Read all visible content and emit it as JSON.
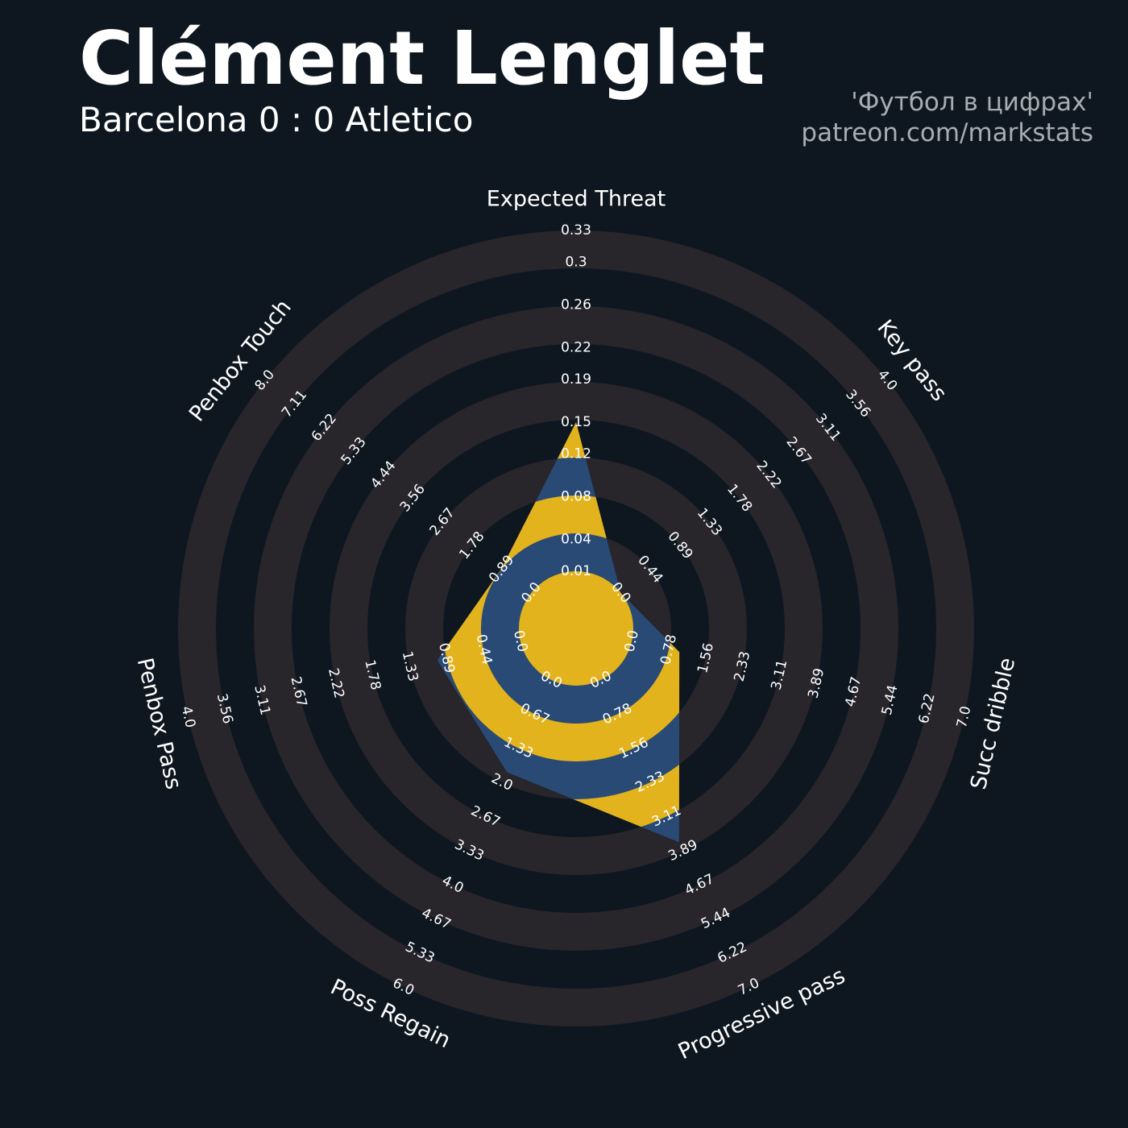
{
  "chart_data": {
    "type": "radar",
    "title": "Clément Lenglet",
    "subtitle": "Barcelona 0 : 0 Atletico",
    "annotations": [
      "'Футбол в цифрах'",
      "patreon.com/markstats"
    ],
    "colors": {
      "background": "#0e1720",
      "rings": "#28252b",
      "radar": "#284a74",
      "radar_rings": "#e2b31d"
    },
    "axes": [
      {
        "label": "Expected Threat",
        "lim": [
          0.01,
          0.33
        ],
        "ticks": [
          0.01,
          0.04,
          0.08,
          0.12,
          0.15,
          0.19,
          0.22,
          0.26,
          0.3,
          0.33
        ]
      },
      {
        "label": "Key pass",
        "lim": [
          0,
          4
        ],
        "ticks": [
          {
            "value": 0,
            "label": "0.0"
          },
          0.44,
          0.89,
          1.33,
          1.78,
          2.22,
          2.67,
          3.11,
          3.56,
          {
            "value": 4,
            "label": "4.0"
          }
        ]
      },
      {
        "label": "Succ dribble",
        "lim": [
          0,
          7
        ],
        "ticks": [
          {
            "value": 0,
            "label": "0.0"
          },
          0.78,
          1.56,
          2.33,
          3.11,
          3.89,
          4.67,
          5.44,
          6.22,
          {
            "value": 7,
            "label": "7.0"
          }
        ]
      },
      {
        "label": "Progressive pass",
        "lim": [
          0,
          7
        ],
        "ticks": [
          {
            "value": 0,
            "label": "0.0"
          },
          0.78,
          1.56,
          2.33,
          3.11,
          3.89,
          4.67,
          5.44,
          6.22,
          {
            "value": 7,
            "label": "7.0"
          }
        ]
      },
      {
        "label": "Poss Regain",
        "lim": [
          0,
          6
        ],
        "ticks": [
          {
            "value": 0,
            "label": "0.0"
          },
          0.67,
          1.33,
          {
            "value": 2,
            "label": "2.0"
          },
          2.67,
          3.33,
          {
            "value": 4,
            "label": "4.0"
          },
          4.67,
          5.33,
          {
            "value": 6,
            "label": "6.0"
          }
        ]
      },
      {
        "label": "Penbox Pass",
        "lim": [
          0,
          4
        ],
        "ticks": [
          {
            "value": 0,
            "label": "0.0"
          },
          0.44,
          0.89,
          1.33,
          1.78,
          2.22,
          2.67,
          3.11,
          3.56,
          {
            "value": 4,
            "label": "4.0"
          }
        ]
      },
      {
        "label": "Penbox Touch",
        "lim": [
          0,
          8
        ],
        "ticks": [
          {
            "value": 0,
            "label": "0.0"
          },
          0.89,
          1.78,
          2.67,
          3.56,
          4.44,
          5.33,
          6.22,
          7.11,
          {
            "value": 8,
            "label": "8.0"
          }
        ]
      }
    ],
    "values": [
      0.15,
      0,
      1,
      3.7,
      1.8,
      1,
      0.9
    ]
  }
}
